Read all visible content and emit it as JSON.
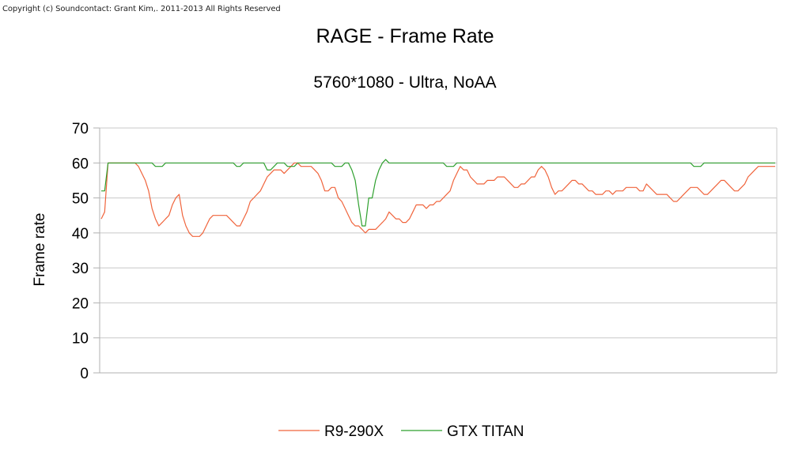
{
  "copyright": "Copyright (c) Soundcontact: Grant Kim,. 2011-2013 All Rights Reserved",
  "colors": {
    "r9": "#f0643c",
    "titan": "#2fa02f",
    "grid": "#c8c8c8",
    "axis": "#b0b0b0"
  },
  "chart_data": {
    "type": "line",
    "title": "RAGE - Frame Rate",
    "subtitle": "5760*1080 - Ultra, NoAA",
    "xlabel": "",
    "ylabel": "Frame rate",
    "ylim": [
      0,
      70
    ],
    "yticks": [
      0,
      10,
      20,
      30,
      40,
      50,
      60,
      70
    ],
    "grid": true,
    "legend": "bottom",
    "x": [
      0,
      1,
      2,
      3,
      4,
      5,
      6,
      7,
      8,
      9,
      10,
      11,
      12,
      13,
      14,
      15,
      16,
      17,
      18,
      19,
      20,
      21,
      22,
      23,
      24,
      25,
      26,
      27,
      28,
      29,
      30,
      31,
      32,
      33,
      34,
      35,
      36,
      37,
      38,
      39,
      40,
      41,
      42,
      43,
      44,
      45,
      46,
      47,
      48,
      49,
      50,
      51,
      52,
      53,
      54,
      55,
      56,
      57,
      58,
      59,
      60,
      61,
      62,
      63,
      64,
      65,
      66,
      67,
      68,
      69,
      70,
      71,
      72,
      73,
      74,
      75,
      76,
      77,
      78,
      79,
      80,
      81,
      82,
      83,
      84,
      85,
      86,
      87,
      88,
      89,
      90,
      91,
      92,
      93,
      94,
      95,
      96,
      97,
      98,
      99,
      100,
      101,
      102,
      103,
      104,
      105,
      106,
      107,
      108,
      109,
      110,
      111,
      112,
      113,
      114,
      115,
      116,
      117,
      118,
      119,
      120,
      121,
      122,
      123,
      124,
      125,
      126,
      127,
      128,
      129,
      130,
      131,
      132,
      133,
      134,
      135,
      136,
      137,
      138,
      139,
      140,
      141,
      142,
      143,
      144,
      145,
      146,
      147,
      148,
      149,
      150,
      151,
      152,
      153,
      154,
      155,
      156,
      157,
      158,
      159,
      160,
      161,
      162,
      163,
      164,
      165,
      166,
      167,
      168,
      169,
      170,
      171,
      172,
      173,
      174,
      175,
      176,
      177,
      178,
      179,
      180,
      181,
      182,
      183,
      184,
      185,
      186,
      187,
      188,
      189,
      190,
      191,
      192,
      193,
      194,
      195,
      196,
      197,
      198,
      199
    ],
    "series": [
      {
        "name": "R9-290X",
        "color": "#f0643c",
        "values": [
          44,
          46,
          60,
          60,
          60,
          60,
          60,
          60,
          60,
          60,
          60,
          59,
          57,
          55,
          52,
          47,
          44,
          42,
          43,
          44,
          45,
          48,
          50,
          51,
          45,
          42,
          40,
          39,
          39,
          39,
          40,
          42,
          44,
          45,
          45,
          45,
          45,
          45,
          44,
          43,
          42,
          42,
          44,
          46,
          49,
          50,
          51,
          52,
          54,
          56,
          57,
          58,
          58,
          58,
          57,
          58,
          59,
          60,
          60,
          59,
          59,
          59,
          59,
          58,
          57,
          55,
          52,
          52,
          53,
          53,
          50,
          49,
          47,
          45,
          43,
          42,
          42,
          41,
          40,
          41,
          41,
          41,
          42,
          43,
          44,
          46,
          45,
          44,
          44,
          43,
          43,
          44,
          46,
          48,
          48,
          48,
          47,
          48,
          48,
          49,
          49,
          50,
          51,
          52,
          55,
          57,
          59,
          58,
          58,
          56,
          55,
          54,
          54,
          54,
          55,
          55,
          55,
          56,
          56,
          56,
          55,
          54,
          53,
          53,
          54,
          54,
          55,
          56,
          56,
          58,
          59,
          58,
          56,
          53,
          51,
          52,
          52,
          53,
          54,
          55,
          55,
          54,
          54,
          53,
          52,
          52,
          51,
          51,
          51,
          52,
          52,
          51,
          52,
          52,
          52,
          53,
          53,
          53,
          53,
          52,
          52,
          54,
          53,
          52,
          51,
          51,
          51,
          51,
          50,
          49,
          49,
          50,
          51,
          52,
          53,
          53,
          53,
          52,
          51,
          51,
          52,
          53,
          54,
          55,
          55,
          54,
          53,
          52,
          52,
          53,
          54,
          56,
          57,
          58,
          59,
          59,
          59,
          59,
          59,
          59
        ]
      },
      {
        "name": "GTX TITAN",
        "color": "#2fa02f",
        "values": [
          52,
          52,
          60,
          60,
          60,
          60,
          60,
          60,
          60,
          60,
          60,
          60,
          60,
          60,
          60,
          60,
          59,
          59,
          59,
          60,
          60,
          60,
          60,
          60,
          60,
          60,
          60,
          60,
          60,
          60,
          60,
          60,
          60,
          60,
          60,
          60,
          60,
          60,
          60,
          60,
          59,
          59,
          60,
          60,
          60,
          60,
          60,
          60,
          60,
          58,
          58,
          59,
          60,
          60,
          60,
          59,
          59,
          59,
          60,
          60,
          60,
          60,
          60,
          60,
          60,
          60,
          60,
          60,
          60,
          59,
          59,
          59,
          60,
          60,
          58,
          55,
          48,
          42,
          42,
          50,
          50,
          55,
          58,
          60,
          61,
          60,
          60,
          60,
          60,
          60,
          60,
          60,
          60,
          60,
          60,
          60,
          60,
          60,
          60,
          60,
          60,
          60,
          59,
          59,
          59,
          60,
          60,
          60,
          60,
          60,
          60,
          60,
          60,
          60,
          60,
          60,
          60,
          60,
          60,
          60,
          60,
          60,
          60,
          60,
          60,
          60,
          60,
          60,
          60,
          60,
          60,
          60,
          60,
          60,
          60,
          60,
          60,
          60,
          60,
          60,
          60,
          60,
          60,
          60,
          60,
          60,
          60,
          60,
          60,
          60,
          60,
          60,
          60,
          60,
          60,
          60,
          60,
          60,
          60,
          60,
          60,
          60,
          60,
          60,
          60,
          60,
          60,
          60,
          60,
          60,
          60,
          60,
          60,
          60,
          60,
          59,
          59,
          59,
          60,
          60,
          60,
          60,
          60,
          60,
          60,
          60,
          60,
          60,
          60,
          60,
          60,
          60,
          60,
          60,
          60,
          60,
          60,
          60,
          60,
          60
        ]
      }
    ]
  }
}
